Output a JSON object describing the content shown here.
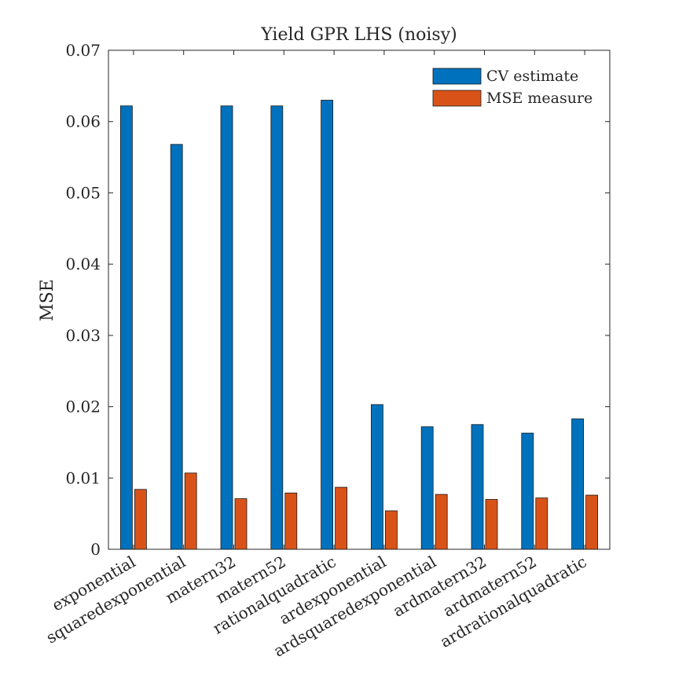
{
  "chart_data": {
    "type": "bar",
    "title": "Yield GPR LHS (noisy)",
    "xlabel": "",
    "ylabel": "MSE",
    "ylim": [
      0,
      0.07
    ],
    "yticks": [
      "0",
      "0.01",
      "0.02",
      "0.03",
      "0.04",
      "0.05",
      "0.06",
      "0.07"
    ],
    "grid": false,
    "legend_position": "top-right",
    "categories": [
      "exponential",
      "squaredexponential",
      "matern32",
      "matern52",
      "rationalquadratic",
      "ardexponential",
      "ardsquaredexponential",
      "ardmatern32",
      "ardmatern52",
      "ardrationalquadratic"
    ],
    "series": [
      {
        "name": "CV estimate",
        "color": "#0072BD",
        "values": [
          0.0622,
          0.0568,
          0.0622,
          0.0622,
          0.063,
          0.0203,
          0.0172,
          0.0175,
          0.0163,
          0.0183
        ]
      },
      {
        "name": "MSE measure",
        "color": "#D95319",
        "values": [
          0.0084,
          0.0107,
          0.0071,
          0.0079,
          0.0087,
          0.0054,
          0.0077,
          0.007,
          0.0072,
          0.0076
        ]
      }
    ]
  }
}
